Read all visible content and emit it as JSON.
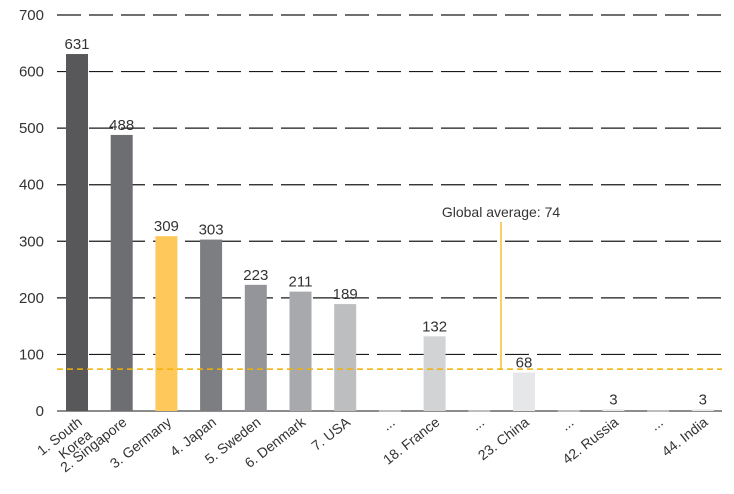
{
  "chart_data": {
    "type": "bar",
    "ylim": [
      0,
      700
    ],
    "yticks": [
      0,
      100,
      200,
      300,
      400,
      500,
      600,
      700
    ],
    "grid": true,
    "bars": [
      {
        "label": "1. South Korea",
        "label_lines": [
          "1. South",
          "Korea"
        ],
        "value": 631,
        "value_label": "631",
        "color": "#58585a"
      },
      {
        "label": "2. Singapore",
        "value": 488,
        "value_label": "488",
        "color": "#6d6e71"
      },
      {
        "label": "3. Germany",
        "value": 309,
        "value_label": "309",
        "color": "#ffc85a"
      },
      {
        "label": "4. Japan",
        "value": 303,
        "value_label": "303",
        "color": "#7d7e81"
      },
      {
        "label": "5. Sweden",
        "value": 223,
        "value_label": "223",
        "color": "#939598"
      },
      {
        "label": "6. Denmark",
        "value": 211,
        "value_label": "211",
        "color": "#a7a9ac"
      },
      {
        "label": "7. USA",
        "value": 189,
        "value_label": "189",
        "color": "#bcbec0"
      },
      {
        "label": "...",
        "value": 1,
        "value_label": "",
        "color": "#8a8a8a"
      },
      {
        "label": "18. France",
        "value": 132,
        "value_label": "132",
        "color": "#d1d3d4"
      },
      {
        "label": "...",
        "value": 1,
        "value_label": "",
        "color": "#8a8a8a"
      },
      {
        "label": "23. China",
        "value": 68,
        "value_label": "68",
        "color": "#e6e7e8"
      },
      {
        "label": "...",
        "value": 1,
        "value_label": "",
        "color": "#8a8a8a"
      },
      {
        "label": "42. Russia",
        "value": 3,
        "value_label": "3",
        "color": "#e6e7e8"
      },
      {
        "label": "...",
        "value": 1,
        "value_label": "",
        "color": "#8a8a8a"
      },
      {
        "label": "44. India",
        "value": 3,
        "value_label": "3",
        "color": "#e6e7e8"
      }
    ],
    "average": {
      "label": "Global average: 74",
      "value": 74,
      "color": "#f2b100"
    }
  }
}
